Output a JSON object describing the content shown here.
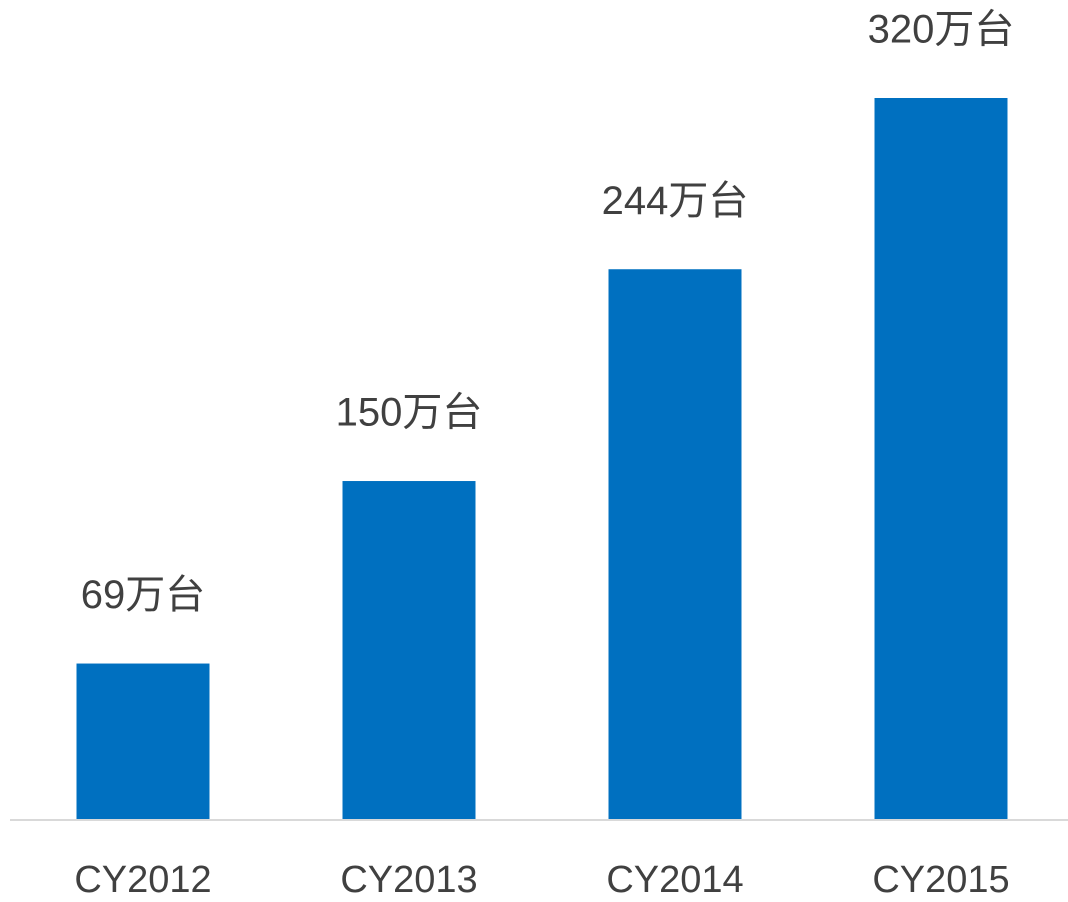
{
  "chart_data": {
    "type": "bar",
    "categories": [
      "CY2012",
      "CY2013",
      "CY2014",
      "CY2015"
    ],
    "values": [
      69,
      150,
      244,
      320
    ],
    "value_labels": [
      "69万台",
      "150万台",
      "244万台",
      "320万台"
    ],
    "color": "#0070c0"
  }
}
